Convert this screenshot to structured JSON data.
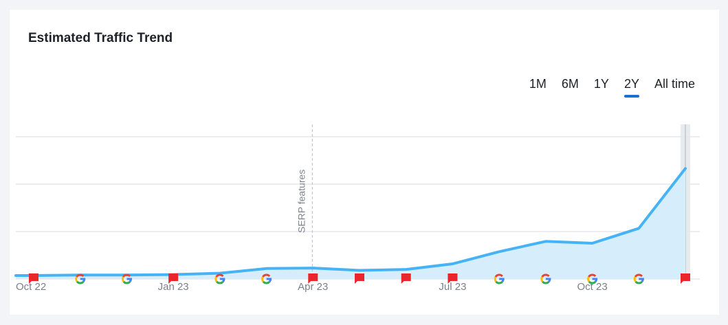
{
  "widget": {
    "title": "Estimated Traffic Trend",
    "ranges": [
      {
        "label": "1M",
        "active": false
      },
      {
        "label": "6M",
        "active": false
      },
      {
        "label": "1Y",
        "active": false
      },
      {
        "label": "2Y",
        "active": true
      },
      {
        "label": "All time",
        "active": false
      }
    ],
    "annotation": "SERP features",
    "colors": {
      "line": "#45b3f5",
      "area": "#d6edfc",
      "accent": "#1a6fd4",
      "flag": "#e8262b",
      "grid": "#e6e7ec",
      "background": "#f3f4f8"
    }
  },
  "chart_data": {
    "type": "area",
    "title": "Estimated Traffic Trend",
    "xlabel": "",
    "ylabel": "",
    "x_tick_labels": [
      "Oct 22",
      "Jan 23",
      "Apr 23",
      "Jul 23",
      "Oct 23"
    ],
    "x": [
      "Oct 22",
      "Nov 22",
      "Dec 22",
      "Jan 23",
      "Feb 23",
      "Mar 23",
      "Apr 23",
      "May 23",
      "Jun 23",
      "Jul 23",
      "Aug 23",
      "Sep 23",
      "Oct 23",
      "Nov 23",
      "Dec 23"
    ],
    "series": [
      {
        "name": "Estimated Traffic",
        "values": [
          1.5,
          2,
          2,
          2.5,
          4,
          9,
          9.5,
          7,
          8,
          14,
          27,
          38,
          36,
          52,
          116
        ]
      }
    ],
    "y_axis_labels_visible": false,
    "gridlines": 4,
    "grid": true,
    "annotations": [
      {
        "x": "Apr 23",
        "label": "SERP features",
        "type": "vertical-dashed-line"
      }
    ],
    "markers": [
      {
        "x": "Oct 22",
        "type": "flag"
      },
      {
        "x": "Nov 22",
        "type": "google-update"
      },
      {
        "x": "Dec 22",
        "type": "google-update"
      },
      {
        "x": "Jan 23",
        "type": "flag"
      },
      {
        "x": "Feb 23",
        "type": "google-update"
      },
      {
        "x": "Mar 23",
        "type": "google-update"
      },
      {
        "x": "Apr 23",
        "type": "flag"
      },
      {
        "x": "May 23",
        "type": "flag"
      },
      {
        "x": "Jun 23",
        "type": "flag"
      },
      {
        "x": "Jul 23",
        "type": "flag"
      },
      {
        "x": "Aug 23",
        "type": "google-update"
      },
      {
        "x": "Sep 23",
        "type": "google-update"
      },
      {
        "x": "Oct 23",
        "type": "google-update"
      },
      {
        "x": "Nov 23",
        "type": "google-update"
      },
      {
        "x": "Dec 23",
        "type": "flag"
      }
    ],
    "highlighted_point": "Dec 23",
    "legend": "none"
  }
}
